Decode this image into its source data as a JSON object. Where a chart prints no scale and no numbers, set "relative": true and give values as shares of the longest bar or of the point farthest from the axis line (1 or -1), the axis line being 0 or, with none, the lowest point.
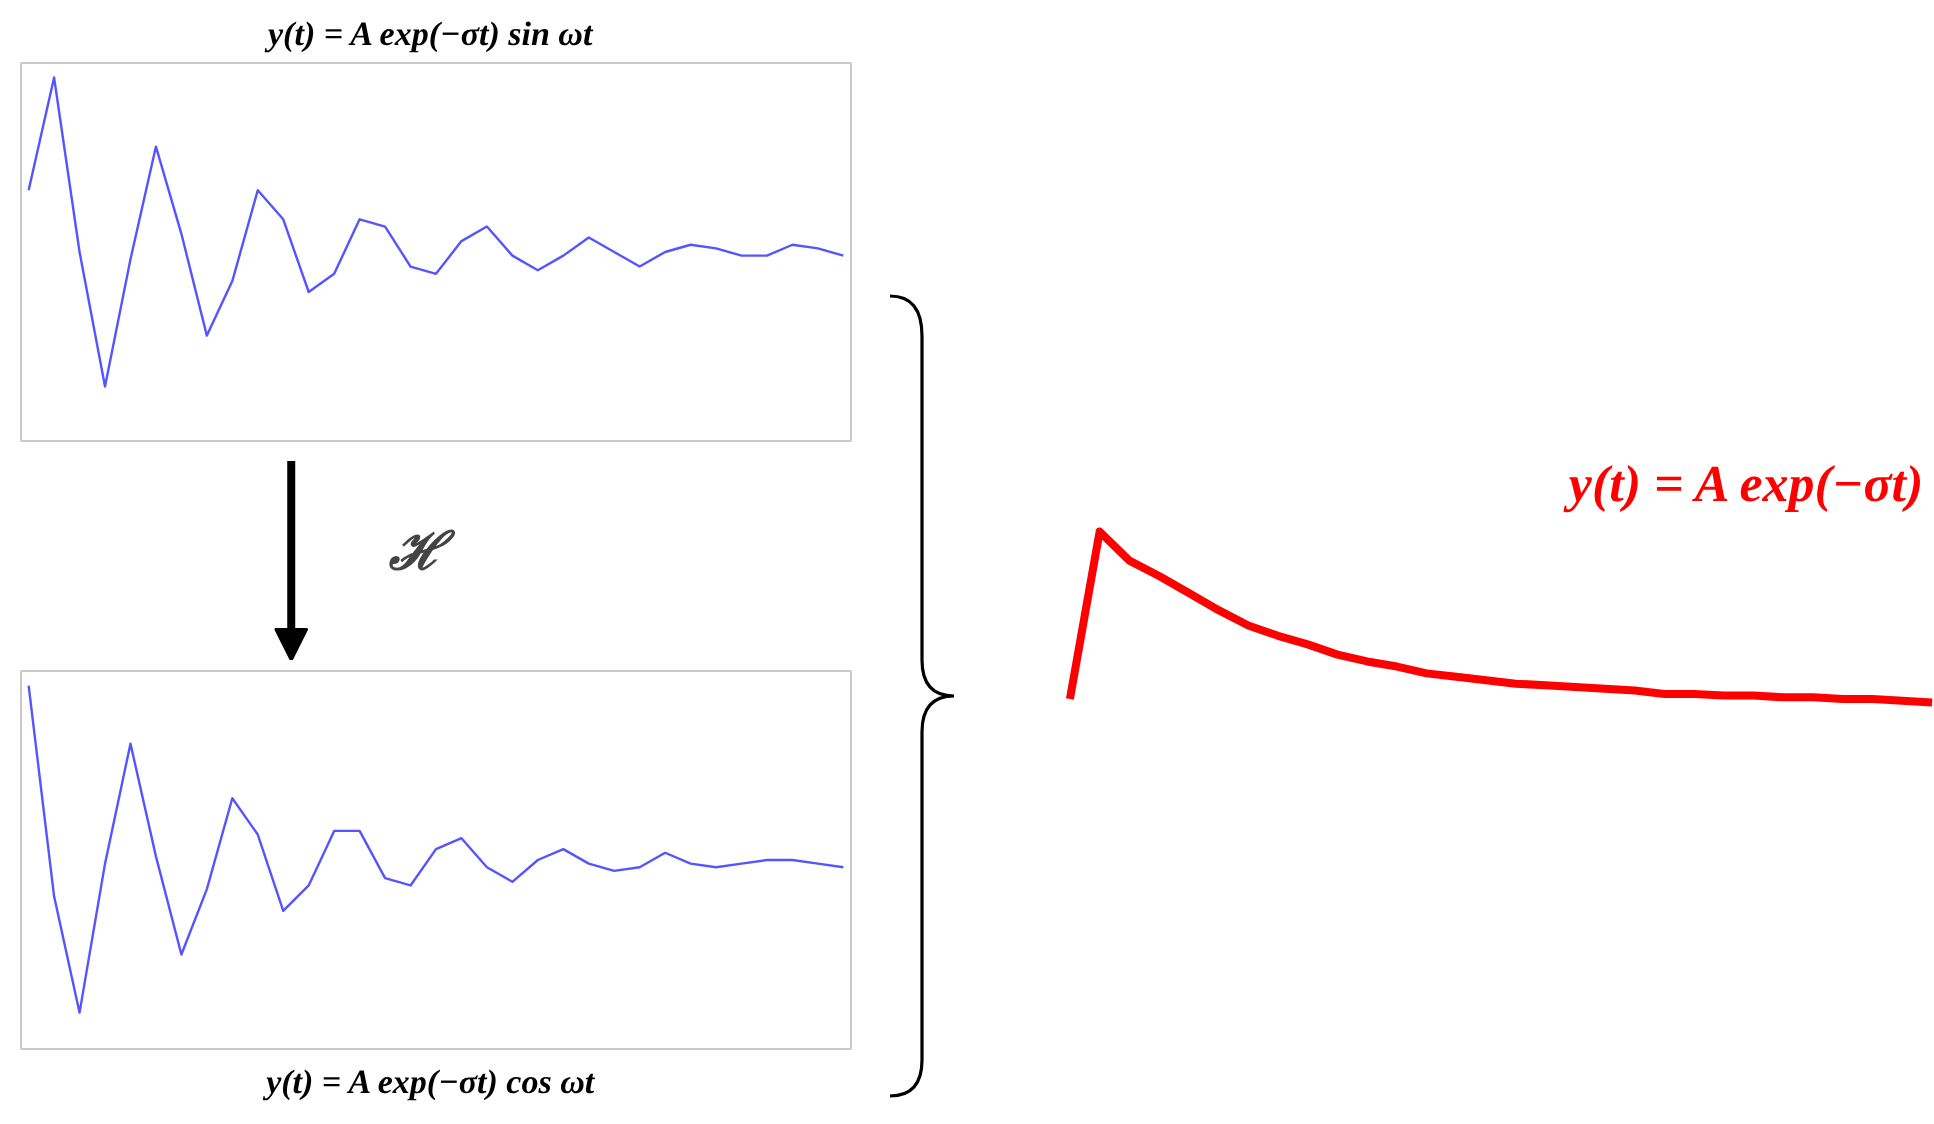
{
  "chart_data": [
    {
      "type": "line",
      "title": "y(t) =  A exp(−σt) sin ωt",
      "relative": true,
      "categories": [
        null,
        null,
        null,
        null,
        null,
        null,
        null,
        null,
        null,
        null,
        null,
        null,
        null,
        null,
        null,
        null,
        null,
        null,
        null,
        null,
        null,
        null,
        null,
        null,
        null,
        null,
        null,
        null,
        null,
        null,
        null,
        null,
        null
      ],
      "series": [
        {
          "color": "#5555ff",
          "values": [
            0.69,
            1.0,
            0.52,
            0.15,
            0.5,
            0.81,
            0.57,
            0.29,
            0.44,
            0.69,
            0.61,
            0.41,
            0.46,
            0.61,
            0.59,
            0.48,
            0.46,
            0.55,
            0.59,
            0.51,
            0.47,
            0.51,
            0.56,
            0.52,
            0.48,
            0.52,
            0.54,
            0.53,
            0.51,
            0.51,
            0.54,
            0.53,
            0.51
          ]
        }
      ]
    },
    {
      "type": "line",
      "title": "y(t) =  A exp(−σt) cos ωt",
      "annotations": [
        "ℋ"
      ],
      "relative": true,
      "categories": [
        null,
        null,
        null,
        null,
        null,
        null,
        null,
        null,
        null,
        null,
        null,
        null,
        null,
        null,
        null,
        null,
        null,
        null,
        null,
        null,
        null,
        null,
        null,
        null,
        null,
        null,
        null,
        null,
        null,
        null,
        null,
        null,
        null
      ],
      "series": [
        {
          "color": "#5555ff",
          "values": [
            1.0,
            0.42,
            0.1,
            0.51,
            0.84,
            0.53,
            0.26,
            0.44,
            0.69,
            0.59,
            0.38,
            0.45,
            0.6,
            0.6,
            0.47,
            0.45,
            0.55,
            0.58,
            0.5,
            0.46,
            0.52,
            0.55,
            0.51,
            0.49,
            0.5,
            0.54,
            0.51,
            0.5,
            0.51,
            0.52,
            0.52,
            0.51,
            0.5
          ]
        }
      ]
    },
    {
      "type": "line",
      "title": "y(t) =  A exp(−σt)",
      "relative": true,
      "categories": [
        null,
        null,
        null,
        null,
        null,
        null,
        null,
        null,
        null,
        null,
        null,
        null,
        null,
        null,
        null,
        null,
        null,
        null,
        null,
        null,
        null,
        null,
        null,
        null,
        null,
        null,
        null,
        null,
        null,
        null
      ],
      "series": [
        {
          "color": "#ff0000",
          "values": [
            0.02,
            1.0,
            0.83,
            0.74,
            0.64,
            0.54,
            0.45,
            0.39,
            0.34,
            0.28,
            0.24,
            0.21,
            0.17,
            0.15,
            0.13,
            0.11,
            0.1,
            0.09,
            0.08,
            0.07,
            0.05,
            0.05,
            0.04,
            0.04,
            0.03,
            0.03,
            0.02,
            0.02,
            0.01,
            0
          ]
        }
      ]
    }
  ]
}
